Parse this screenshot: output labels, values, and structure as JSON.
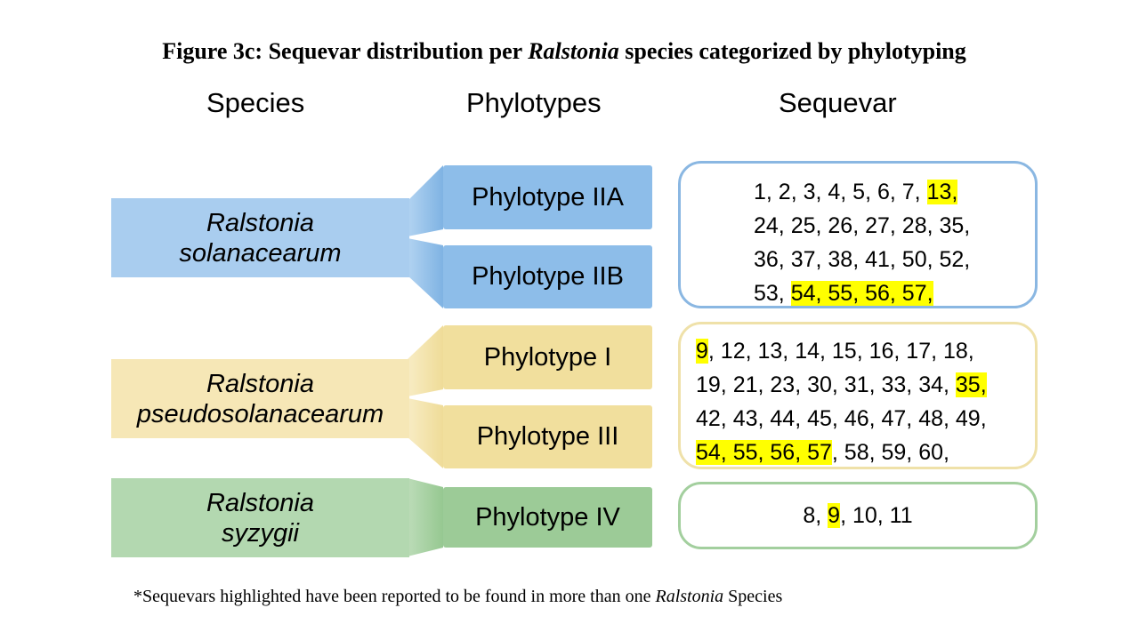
{
  "title": {
    "prefix": "Figure 3c: Sequevar distribution per ",
    "italic": "Ralstonia",
    "suffix": " species categorized by phylotyping"
  },
  "headers": {
    "species": "Species",
    "phylotypes": "Phylotypes",
    "sequevar": "Sequevar"
  },
  "colors": {
    "blue_light": "#a9cdef",
    "blue_dark": "#8dbde9",
    "blue_border": "#8ab7e2",
    "yellow_light": "#f6e7b6",
    "yellow_dark": "#f1df9d",
    "yellow_border": "#efe1a9",
    "green_light": "#b3d8b0",
    "green_dark": "#9ccb97",
    "green_border": "#a3cf9e",
    "highlight": "#ffff00"
  },
  "groups": [
    {
      "species": [
        "Ralstonia",
        "solanacearum"
      ],
      "phylotypes": [
        "Phylotype IIA",
        "Phylotype IIB"
      ],
      "sequevar_lines": [
        [
          {
            "t": "1, 2, 3, 4, 5, 6, 7, ",
            "h": false
          },
          {
            "t": "13,",
            "h": true
          }
        ],
        [
          {
            "t": "24, 25, 26, 27, 28, 35,",
            "h": false
          }
        ],
        [
          {
            "t": "36, 37, 38, 41, 50, 52,",
            "h": false
          }
        ],
        [
          {
            "t": "53, ",
            "h": false
          },
          {
            "t": "54, 55, 56, 57,",
            "h": true
          }
        ]
      ]
    },
    {
      "species": [
        "Ralstonia",
        "pseudosolanacearum"
      ],
      "phylotypes": [
        "Phylotype I",
        "Phylotype III"
      ],
      "sequevar_lines": [
        [
          {
            "t": "9",
            "h": true
          },
          {
            "t": ", 12, 13, 14, 15, 16, 17, 18,",
            "h": false
          }
        ],
        [
          {
            "t": "19, 21, 23, 30, 31, 33, 34, ",
            "h": false
          },
          {
            "t": "35,",
            "h": true
          }
        ],
        [
          {
            "t": "42, 43, 44, 45, 46, 47, 48, 49,",
            "h": false
          }
        ],
        [
          {
            "t": "54, 55, 56, 57",
            "h": true
          },
          {
            "t": ", 58, 59, 60,",
            "h": false
          }
        ]
      ]
    },
    {
      "species": [
        "Ralstonia",
        "syzygii"
      ],
      "phylotypes": [
        "Phylotype IV"
      ],
      "sequevar_lines": [
        [
          {
            "t": "8, ",
            "h": false
          },
          {
            "t": "9",
            "h": true
          },
          {
            "t": ", 10, 11",
            "h": false
          }
        ]
      ]
    }
  ],
  "footnote": {
    "prefix": "*Sequevars highlighted have been reported to be found in more than one ",
    "italic": "Ralstonia",
    "suffix": " Species"
  }
}
